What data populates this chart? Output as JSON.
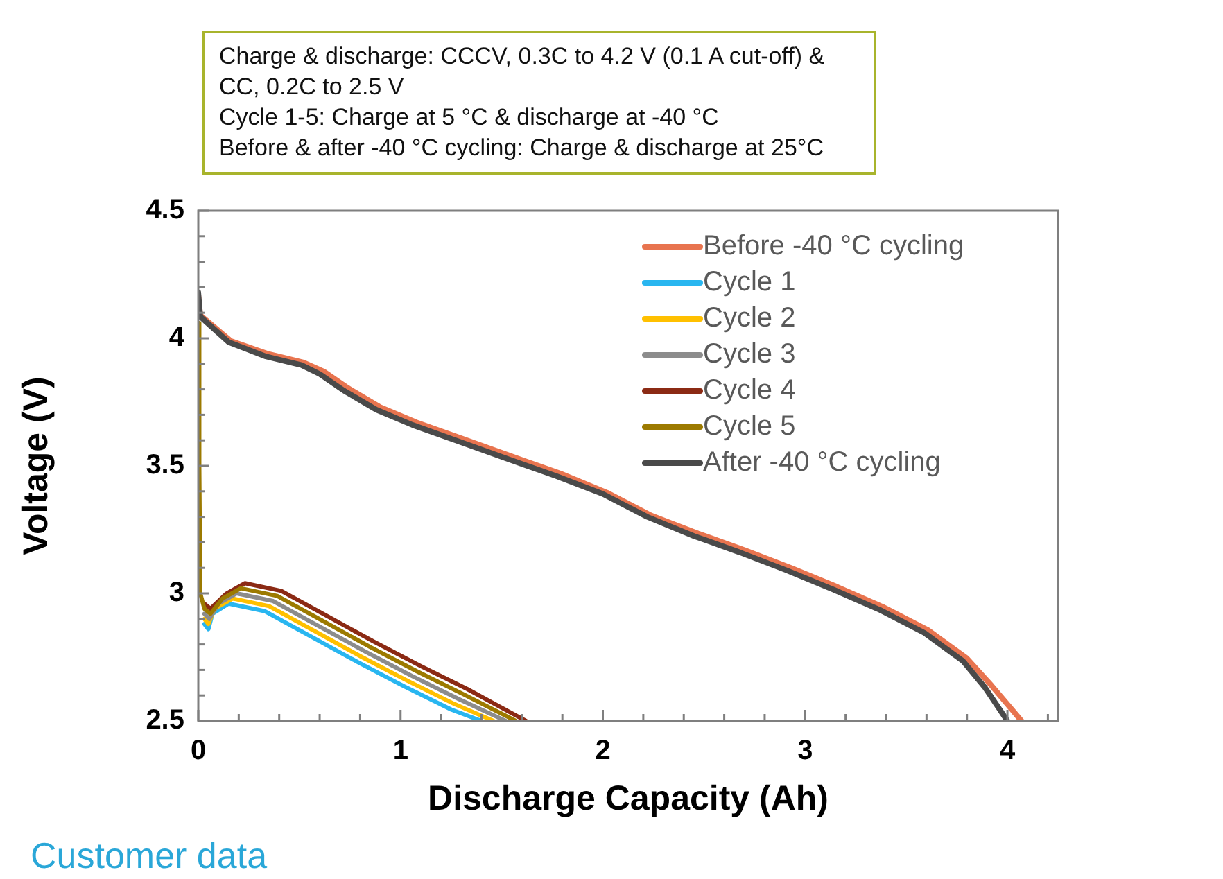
{
  "chart_data": {
    "type": "line",
    "xlabel": "Discharge Capacity (Ah)",
    "ylabel": "Voltage (V)",
    "annotations": [
      "Charge & discharge: CCCV, 0.3C to 4.2 V (0.1 A cut-off) & CC, 0.2C to 2.5 V",
      "Cycle 1-5: Charge at 5 °C & discharge at -40 °C",
      "Before & after -40 °C cycling: Charge & discharge at 25°C",
      "Customer data"
    ],
    "xlim": [
      0,
      4.25
    ],
    "ylim": [
      2.5,
      4.5
    ],
    "xticks": [
      0,
      {
        "value": 0.2,
        "label": null
      },
      {
        "value": 0.4,
        "label": null
      },
      {
        "value": 0.6,
        "label": null
      },
      {
        "value": 0.8,
        "label": null
      },
      1,
      {
        "value": 1.2,
        "label": null
      },
      {
        "value": 1.4,
        "label": null
      },
      {
        "value": 1.6,
        "label": null
      },
      {
        "value": 1.8,
        "label": null
      },
      2,
      {
        "value": 2.2,
        "label": null
      },
      {
        "value": 2.4,
        "label": null
      },
      {
        "value": 2.6,
        "label": null
      },
      {
        "value": 2.8,
        "label": null
      },
      3,
      {
        "value": 3.2,
        "label": null
      },
      {
        "value": 3.4,
        "label": null
      },
      {
        "value": 3.6,
        "label": null
      },
      {
        "value": 3.8,
        "label": null
      },
      4,
      {
        "value": 4.2,
        "label": null
      }
    ],
    "yticks": [
      2.5,
      {
        "value": 2.6,
        "label": null
      },
      {
        "value": 2.7,
        "label": null
      },
      {
        "value": 2.8,
        "label": null
      },
      {
        "value": 2.9,
        "label": null
      },
      3,
      {
        "value": 3.1,
        "label": null
      },
      {
        "value": 3.2,
        "label": null
      },
      {
        "value": 3.3,
        "label": null
      },
      {
        "value": 3.4,
        "label": null
      },
      3.5,
      {
        "value": 3.6,
        "label": null
      },
      {
        "value": 3.7,
        "label": null
      },
      {
        "value": 3.8,
        "label": null
      },
      {
        "value": 3.9,
        "label": null
      },
      4,
      {
        "value": 4.1,
        "label": null
      },
      {
        "value": 4.2,
        "label": null
      },
      {
        "value": 4.3,
        "label": null
      },
      {
        "value": 4.4,
        "label": null
      },
      4.5
    ],
    "grid": false,
    "legend": "top right",
    "marker": "none",
    "line_style": "solid",
    "series": [
      {
        "name": "Before -40 °C cycling",
        "color": "#e8744f",
        "x": [
          0,
          0.01,
          0.16,
          0.34,
          0.52,
          0.62,
          0.74,
          0.9,
          1.08,
          1.31,
          1.54,
          1.79,
          2.02,
          2.24,
          2.47,
          2.7,
          2.93,
          3.16,
          3.39,
          3.61,
          3.8,
          3.92,
          4.07
        ],
        "values": [
          4.17,
          4.09,
          3.99,
          3.94,
          3.905,
          3.87,
          3.805,
          3.73,
          3.67,
          3.605,
          3.54,
          3.47,
          3.395,
          3.305,
          3.235,
          3.17,
          3.1,
          3.025,
          2.945,
          2.855,
          2.745,
          2.64,
          2.5
        ]
      },
      {
        "name": "Cycle 1",
        "color": "#29b6f0",
        "x": [
          0.03,
          0.05,
          0.07,
          0.15,
          0.33,
          0.56,
          0.79,
          1.02,
          1.25,
          1.4
        ],
        "values": [
          2.88,
          2.86,
          2.92,
          2.96,
          2.93,
          2.83,
          2.73,
          2.635,
          2.545,
          2.5
        ]
      },
      {
        "name": "Cycle 2",
        "color": "#ffc000",
        "x": [
          0.03,
          0.05,
          0.08,
          0.17,
          0.35,
          0.58,
          0.81,
          1.04,
          1.27,
          1.46
        ],
        "values": [
          2.9,
          2.88,
          2.94,
          2.98,
          2.95,
          2.85,
          2.75,
          2.655,
          2.565,
          2.5
        ]
      },
      {
        "name": "Cycle 3",
        "color": "#8c8c8c",
        "x": [
          0.03,
          0.055,
          0.1,
          0.19,
          0.37,
          0.6,
          0.83,
          1.06,
          1.29,
          1.52
        ],
        "values": [
          2.92,
          2.9,
          2.96,
          3.0,
          2.97,
          2.87,
          2.77,
          2.675,
          2.585,
          2.5
        ]
      },
      {
        "name": "Cycle 4",
        "color": "#8b2a14",
        "x": [
          0.03,
          0.06,
          0.14,
          0.23,
          0.41,
          0.64,
          0.87,
          1.1,
          1.33,
          1.62
        ],
        "values": [
          2.96,
          2.94,
          3.0,
          3.04,
          3.01,
          2.91,
          2.81,
          2.715,
          2.625,
          2.5
        ]
      },
      {
        "name": "Cycle 5",
        "color": "#9c7a00",
        "x": [
          0,
          0.005,
          0.01,
          0.03,
          0.06,
          0.12,
          0.21,
          0.39,
          0.62,
          0.85,
          1.08,
          1.31,
          1.57
        ],
        "values": [
          4.06,
          3.5,
          3.0,
          2.94,
          2.92,
          2.98,
          3.02,
          2.99,
          2.89,
          2.79,
          2.695,
          2.605,
          2.5
        ]
      },
      {
        "name": "After -40 °C cycling",
        "color": "#4a4a4a",
        "x": [
          0,
          0.01,
          0.15,
          0.33,
          0.51,
          0.6,
          0.72,
          0.88,
          1.06,
          1.29,
          1.52,
          1.77,
          2.0,
          2.22,
          2.45,
          2.68,
          2.91,
          3.14,
          3.37,
          3.59,
          3.78,
          3.89,
          4.0
        ],
        "values": [
          4.18,
          4.085,
          3.985,
          3.93,
          3.895,
          3.86,
          3.795,
          3.72,
          3.66,
          3.595,
          3.53,
          3.46,
          3.39,
          3.3,
          3.225,
          3.16,
          3.09,
          3.015,
          2.935,
          2.845,
          2.735,
          2.63,
          2.5
        ]
      }
    ]
  }
}
